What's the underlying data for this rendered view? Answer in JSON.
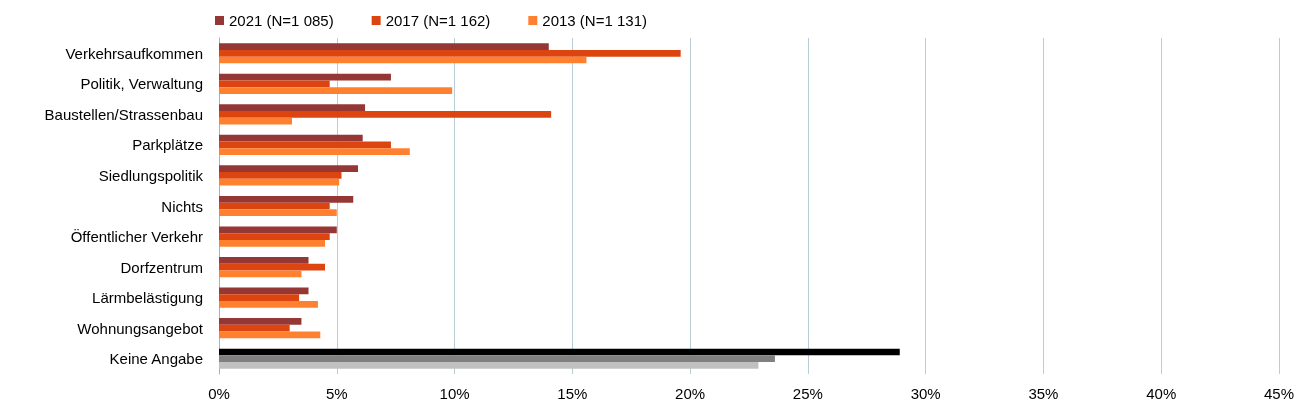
{
  "chart_data": {
    "type": "bar",
    "orientation": "horizontal",
    "categories": [
      "Verkehrsaufkommen",
      "Politik, Verwaltung",
      "Baustellen/Strassenbau",
      "Parkplätze",
      "Siedlungspolitik",
      "Nichts",
      "Öffentlicher Verkehr",
      "Dorfzentrum",
      "Lärmbelästigung",
      "Wohnungsangebot",
      "Keine Angabe"
    ],
    "series": [
      {
        "name": "2021 (N=1 085)",
        "color": "#953735",
        "colors": [
          "#953735",
          "#953735",
          "#953735",
          "#953735",
          "#953735",
          "#953735",
          "#953735",
          "#953735",
          "#953735",
          "#953735",
          "#000000"
        ],
        "values": [
          14.0,
          7.3,
          6.2,
          6.1,
          5.9,
          5.7,
          5.0,
          3.8,
          3.8,
          3.5,
          28.9
        ]
      },
      {
        "name": "2017 (N=1 162)",
        "color": "#dc4510",
        "colors": [
          "#dc4510",
          "#dc4510",
          "#dc4510",
          "#dc4510",
          "#dc4510",
          "#dc4510",
          "#dc4510",
          "#dc4510",
          "#dc4510",
          "#dc4510",
          "#808080"
        ],
        "values": [
          19.6,
          4.7,
          14.1,
          7.3,
          5.2,
          4.7,
          4.7,
          4.5,
          3.4,
          3.0,
          23.6
        ]
      },
      {
        "name": "2013 (N=1 131)",
        "color": "#ff8130",
        "colors": [
          "#ff8130",
          "#ff8130",
          "#ff8130",
          "#ff8130",
          "#ff8130",
          "#ff8130",
          "#ff8130",
          "#ff8130",
          "#ff8130",
          "#ff8130",
          "#c0c0c0"
        ],
        "values": [
          15.6,
          9.9,
          3.1,
          8.1,
          5.1,
          5.0,
          4.5,
          3.5,
          4.2,
          4.3,
          22.9
        ]
      }
    ],
    "xlim": [
      0,
      45
    ],
    "xticks": [
      {
        "value": 0,
        "label": "0%"
      },
      {
        "value": 5,
        "label": "5%"
      },
      {
        "value": 10,
        "label": "10%"
      },
      {
        "value": 15,
        "label": "15%"
      },
      {
        "value": 20,
        "label": "20%"
      },
      {
        "value": 25,
        "label": "25%"
      },
      {
        "value": 30,
        "label": "30%"
      },
      {
        "value": 35,
        "label": "35%"
      },
      {
        "value": 40,
        "label": "40%"
      },
      {
        "value": 45,
        "label": "45%"
      }
    ],
    "grid": "x",
    "legend": "top"
  }
}
